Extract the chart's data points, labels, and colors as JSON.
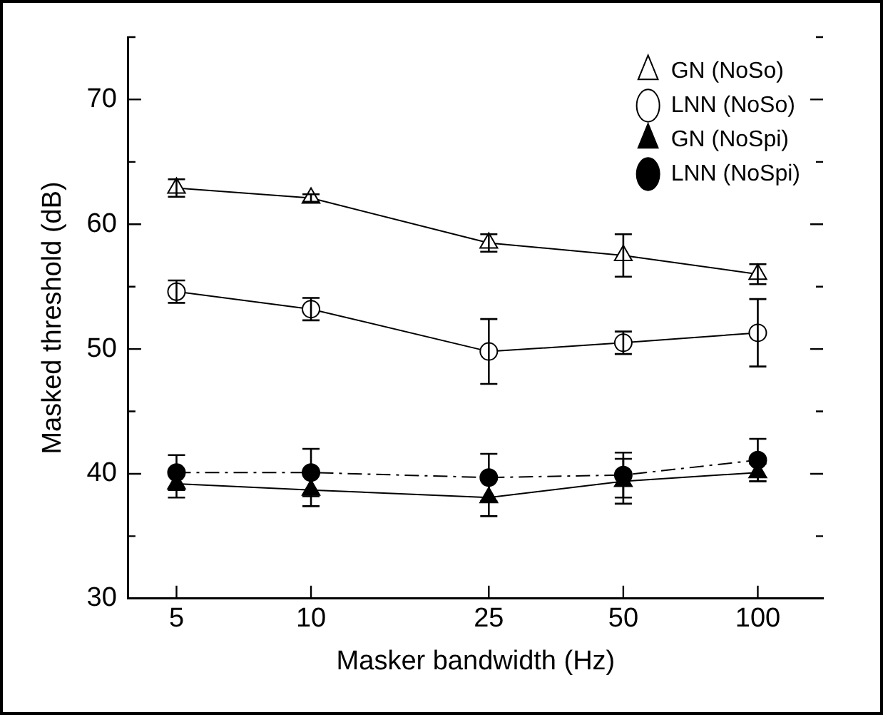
{
  "chart_data": {
    "type": "line",
    "xlabel": "Masker bandwidth (Hz)",
    "ylabel": "Masked threshold (dB)",
    "log": "x",
    "x": [
      5,
      10,
      25,
      50,
      100
    ],
    "xlim": [
      3.9,
      140
    ],
    "xticks": [
      5,
      10,
      25,
      50,
      100
    ],
    "ylim": [
      30,
      75
    ],
    "yticks": [
      30,
      {
        "value": 35,
        "label": null
      },
      40,
      {
        "value": 45,
        "label": null
      },
      50,
      {
        "value": 55,
        "label": null
      },
      60,
      {
        "value": 65,
        "label": null
      },
      70,
      {
        "value": 75,
        "label": null
      }
    ],
    "grid": false,
    "legend": "top right",
    "series": [
      {
        "name": "GN (NoSo)",
        "color": "#ffffff",
        "marker": "triangle",
        "line_style": "solid",
        "values": [
          62.9,
          62.1,
          58.5,
          57.5,
          56.0
        ],
        "errors": [
          0.7,
          0.3,
          0.7,
          1.7,
          0.8
        ]
      },
      {
        "name": "LNN (NoSo)",
        "color": "#ffffff",
        "marker": "circle",
        "line_style": "solid",
        "values": [
          54.6,
          53.2,
          49.8,
          50.5,
          51.3
        ],
        "errors": [
          0.9,
          0.9,
          2.6,
          0.9,
          2.7
        ]
      },
      {
        "name": "GN (NoSpi)",
        "color": "#000000",
        "marker": "triangle",
        "line_style": "solid",
        "values": [
          39.2,
          38.7,
          38.1,
          39.4,
          40.1
        ],
        "errors": [
          1.1,
          1.3,
          1.5,
          1.8,
          0.7
        ]
      },
      {
        "name": "LNN (NoSpi)",
        "color": "#000000",
        "marker": "circle",
        "line_style": "dashed",
        "values": [
          40.1,
          40.1,
          39.7,
          39.9,
          41.1
        ],
        "errors": [
          1.4,
          1.9,
          1.9,
          1.8,
          1.7
        ]
      }
    ]
  }
}
